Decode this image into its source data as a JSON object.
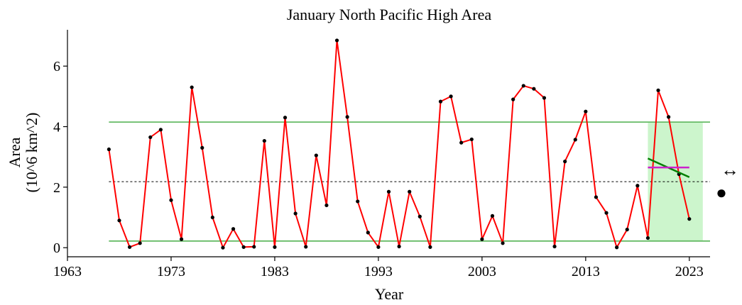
{
  "chart_data": {
    "type": "line",
    "title": "January North Pacific High Area",
    "xlabel": "Year",
    "ylabel_lines": [
      "Area",
      "(10^6 km^2)"
    ],
    "xlim": [
      1963,
      2025
    ],
    "ylim": [
      -0.3,
      7.2
    ],
    "xticks": [
      1963,
      1973,
      1983,
      1993,
      2003,
      2013,
      2023
    ],
    "yticks": [
      0,
      2,
      4,
      6
    ],
    "grid": false,
    "series": [
      {
        "color": "#ff0000",
        "marker_color": "#000000",
        "x": [
          1967,
          1968,
          1969,
          1970,
          1971,
          1972,
          1973,
          1974,
          1975,
          1976,
          1977,
          1978,
          1979,
          1980,
          1981,
          1982,
          1983,
          1984,
          1985,
          1986,
          1987,
          1988,
          1989,
          1990,
          1991,
          1992,
          1993,
          1994,
          1995,
          1996,
          1997,
          1998,
          1999,
          2000,
          2001,
          2002,
          2003,
          2004,
          2005,
          2006,
          2007,
          2008,
          2009,
          2010,
          2011,
          2012,
          2013,
          2014,
          2015,
          2016,
          2017,
          2018,
          2019,
          2020,
          2021,
          2022,
          2023
        ],
        "y": [
          3.25,
          0.9,
          0.02,
          0.15,
          3.65,
          3.9,
          1.57,
          0.28,
          5.3,
          3.3,
          1.0,
          0.0,
          0.62,
          0.02,
          0.03,
          3.53,
          0.02,
          4.3,
          1.13,
          0.03,
          3.05,
          1.4,
          6.85,
          4.32,
          1.53,
          0.5,
          0.02,
          1.85,
          0.04,
          1.85,
          1.03,
          0.02,
          4.83,
          5.0,
          3.47,
          3.58,
          0.28,
          1.05,
          0.15,
          4.9,
          5.35,
          5.25,
          4.95,
          0.04,
          2.85,
          3.57,
          4.5,
          1.67,
          1.15,
          0.01,
          0.6,
          2.05,
          0.32,
          5.2,
          4.32,
          2.43,
          0.95
        ]
      }
    ],
    "reference_lines": {
      "mean": 2.18,
      "upper": 4.15,
      "lower": 0.22,
      "mean_color": "#000000",
      "bounds_color": "#66bb66"
    },
    "shaded_region": {
      "x_start": 2019,
      "x_end": 2024.3,
      "color": "#ccf5cc"
    },
    "trend_line": {
      "x": [
        2019,
        2023
      ],
      "y": [
        2.95,
        2.33
      ],
      "color": "#008000"
    },
    "recent_mean_line": {
      "x": [
        2019,
        2023
      ],
      "y": [
        2.65,
        2.65
      ],
      "color": "#cc22cc"
    },
    "side_indicators": {
      "trend": "↔",
      "mean": "●"
    }
  }
}
